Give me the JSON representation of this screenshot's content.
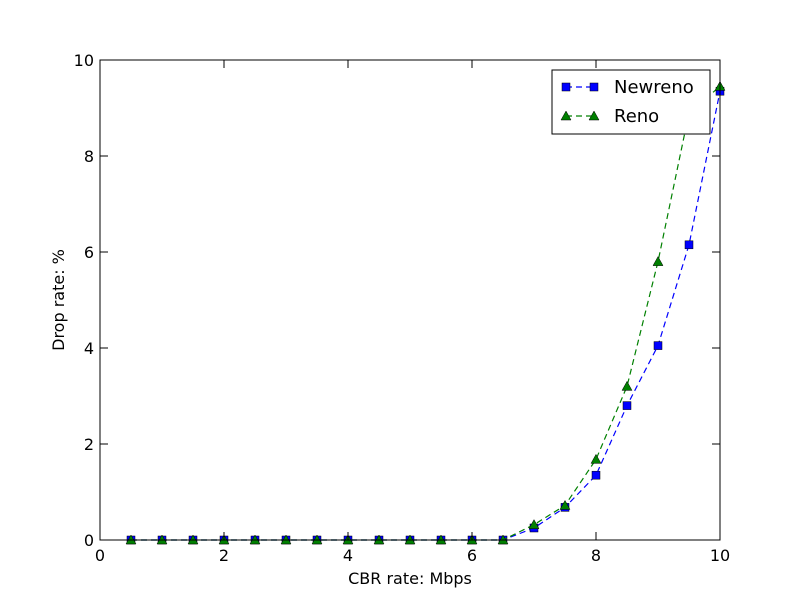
{
  "chart_data": {
    "type": "line",
    "title": "",
    "xlabel": "CBR rate: Mbps",
    "ylabel": "Drop rate: %",
    "xlim": [
      0,
      10
    ],
    "ylim": [
      0,
      10
    ],
    "xticks": [
      0,
      2,
      4,
      6,
      8,
      10
    ],
    "yticks": [
      0,
      2,
      4,
      6,
      8,
      10
    ],
    "xtick_labels": [
      "0",
      "2",
      "4",
      "6",
      "8",
      "10"
    ],
    "ytick_labels": [
      "0",
      "2",
      "4",
      "6",
      "8",
      "10"
    ],
    "grid": false,
    "legend_position": "top-right",
    "x": [
      0.5,
      1.0,
      1.5,
      2.0,
      2.5,
      3.0,
      3.5,
      4.0,
      4.5,
      5.0,
      5.5,
      6.0,
      6.5,
      7.0,
      7.5,
      8.0,
      8.5,
      9.0,
      9.5,
      10.0
    ],
    "series": [
      {
        "name": "Newreno",
        "color": "#0000ff",
        "marker": "square",
        "linestyle": "dashed",
        "values": [
          0,
          0,
          0,
          0,
          0,
          0,
          0,
          0,
          0,
          0,
          0,
          0,
          0,
          0.25,
          0.68,
          1.35,
          2.8,
          4.05,
          6.15,
          9.35
        ]
      },
      {
        "name": "Reno",
        "color": "#008000",
        "marker": "triangle",
        "linestyle": "dashed",
        "values": [
          0,
          0,
          0,
          0,
          0,
          0,
          0,
          0,
          0,
          0,
          0,
          0,
          0,
          0.32,
          0.72,
          1.68,
          3.2,
          5.8,
          8.9,
          9.45
        ]
      }
    ]
  }
}
